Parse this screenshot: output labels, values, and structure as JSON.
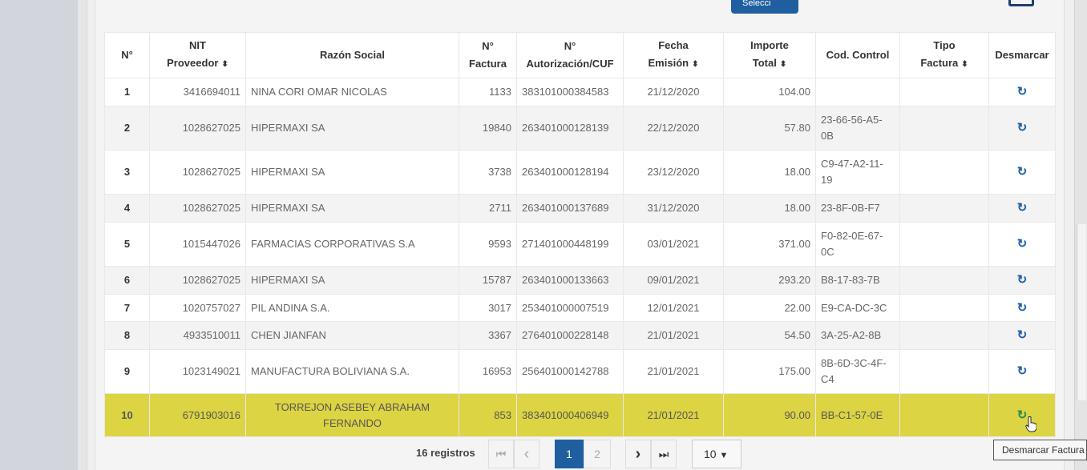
{
  "top": {
    "select_button": "Selecci"
  },
  "table": {
    "headers": [
      {
        "l1": "N°",
        "l2": "",
        "sort": false
      },
      {
        "l1": "NIT",
        "l2": "Proveedor",
        "sort": true
      },
      {
        "l1": "Razón Social",
        "l2": "",
        "sort": false
      },
      {
        "l1": "N°",
        "l2": "Factura",
        "sort": false
      },
      {
        "l1": "N°",
        "l2": "Autorización/CUF",
        "sort": false
      },
      {
        "l1": "Fecha",
        "l2": "Emisión",
        "sort": true
      },
      {
        "l1": "Importe",
        "l2": "Total",
        "sort": true
      },
      {
        "l1": "Cod. Control",
        "l2": "",
        "sort": false
      },
      {
        "l1": "Tipo",
        "l2": "Factura",
        "sort": true
      },
      {
        "l1": "Desmarcar",
        "l2": "",
        "sort": false
      }
    ],
    "rows": [
      {
        "n": "1",
        "nit": "3416694011",
        "razon": "NINA CORI OMAR NICOLAS",
        "factura": "1133",
        "aut": "383101000384583",
        "fecha": "21/12/2020",
        "importe": "104.00",
        "cod": "",
        "tipo": ""
      },
      {
        "n": "2",
        "nit": "1028627025",
        "razon": "HIPERMAXI SA",
        "factura": "19840",
        "aut": "263401000128139",
        "fecha": "22/12/2020",
        "importe": "57.80",
        "cod": "23-66-56-A5-0B",
        "tipo": ""
      },
      {
        "n": "3",
        "nit": "1028627025",
        "razon": "HIPERMAXI SA",
        "factura": "3738",
        "aut": "263401000128194",
        "fecha": "23/12/2020",
        "importe": "18.00",
        "cod": "C9-47-A2-11-19",
        "tipo": ""
      },
      {
        "n": "4",
        "nit": "1028627025",
        "razon": "HIPERMAXI SA",
        "factura": "2711",
        "aut": "263401000137689",
        "fecha": "31/12/2020",
        "importe": "18.00",
        "cod": "23-8F-0B-F7",
        "tipo": ""
      },
      {
        "n": "5",
        "nit": "1015447026",
        "razon": "FARMACIAS CORPORATIVAS S.A",
        "factura": "9593",
        "aut": "271401000448199",
        "fecha": "03/01/2021",
        "importe": "371.00",
        "cod": "F0-82-0E-67-0C",
        "tipo": ""
      },
      {
        "n": "6",
        "nit": "1028627025",
        "razon": "HIPERMAXI SA",
        "factura": "15787",
        "aut": "263401000133663",
        "fecha": "09/01/2021",
        "importe": "293.20",
        "cod": "B8-17-83-7B",
        "tipo": ""
      },
      {
        "n": "7",
        "nit": "1020757027",
        "razon": "PIL ANDINA S.A.",
        "factura": "3017",
        "aut": "253401000007519",
        "fecha": "12/01/2021",
        "importe": "22.00",
        "cod": "E9-CA-DC-3C",
        "tipo": ""
      },
      {
        "n": "8",
        "nit": "4933510011",
        "razon": "CHEN JIANFAN",
        "factura": "3367",
        "aut": "276401000228148",
        "fecha": "21/01/2021",
        "importe": "54.50",
        "cod": "3A-25-A2-8B",
        "tipo": ""
      },
      {
        "n": "9",
        "nit": "1023149021",
        "razon": "MANUFACTURA BOLIVIANA S.A.",
        "factura": "16953",
        "aut": "256401000142788",
        "fecha": "21/01/2021",
        "importe": "175.00",
        "cod": "8B-6D-3C-4F-C4",
        "tipo": ""
      },
      {
        "n": "10",
        "nit": "6791903016",
        "razon": "TORREJON ASEBEY ABRAHAM FERNANDO",
        "factura": "853",
        "aut": "383401000406949",
        "fecha": "21/01/2021",
        "importe": "90.00",
        "cod": "BB-C1-57-0E",
        "tipo": ""
      }
    ],
    "highlight_row": 10
  },
  "pagination": {
    "count": "16 registros",
    "first": "⏮",
    "prev": "‹",
    "pages": [
      "1",
      "2"
    ],
    "current": "1",
    "next": "›",
    "last": "⏭",
    "page_size": "10"
  },
  "tooltip": "Desmarcar Factura",
  "colors": {
    "accent": "#1f5fa0",
    "highlight": "#dcd443",
    "undo_icon": "#1c5fa8"
  }
}
